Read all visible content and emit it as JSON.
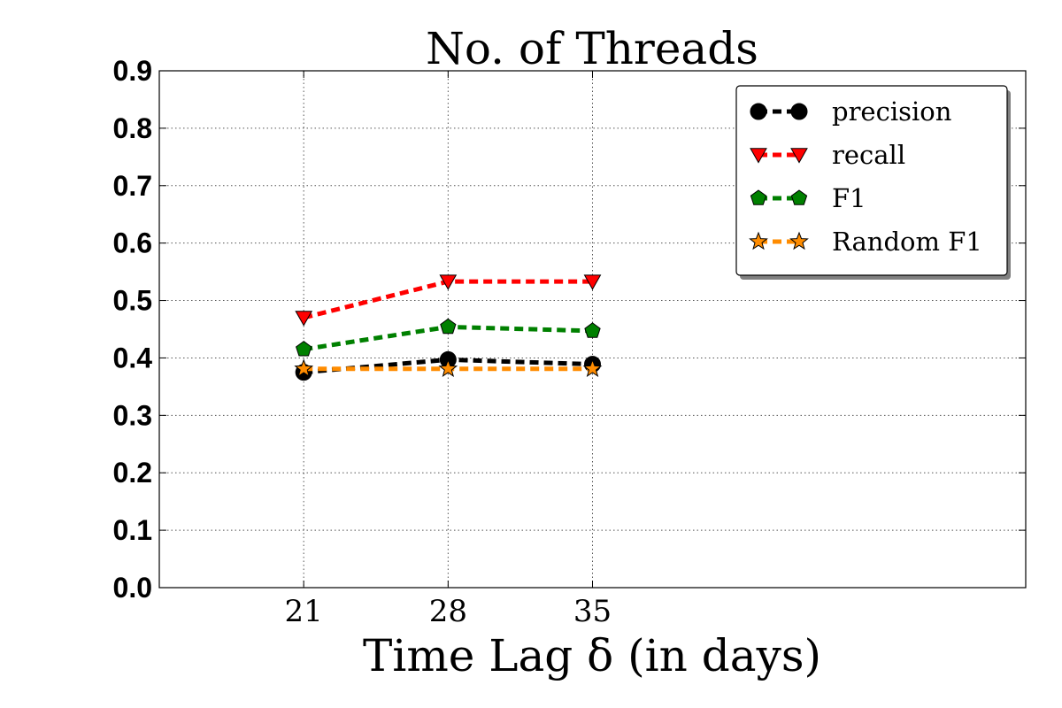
{
  "chart_data": {
    "type": "line",
    "title": "No. of Threads",
    "xlabel": "Time Lag δ (in days)",
    "ylabel": "",
    "x": [
      21,
      28,
      35
    ],
    "x_ticks": [
      "21",
      "28",
      "35"
    ],
    "xlim": [
      14,
      56
    ],
    "ylim": [
      0.0,
      0.9
    ],
    "y_ticks": [
      "0.0",
      "0.1",
      "0.2",
      "0.3",
      "0.4",
      "0.5",
      "0.6",
      "0.7",
      "0.8",
      "0.9"
    ],
    "grid": true,
    "legend_position": "top-right",
    "series": [
      {
        "name": "precision",
        "values": [
          0.375,
          0.397,
          0.389
        ],
        "color": "#000000",
        "marker": "circle"
      },
      {
        "name": "recall",
        "values": [
          0.47,
          0.533,
          0.533
        ],
        "color": "#ff0000",
        "marker": "triangle-down"
      },
      {
        "name": "F1",
        "values": [
          0.415,
          0.454,
          0.447
        ],
        "color": "#008000",
        "marker": "pentagon"
      },
      {
        "name": "Random F1",
        "values": [
          0.381,
          0.381,
          0.381
        ],
        "color": "#ff8c00",
        "marker": "star"
      }
    ]
  }
}
